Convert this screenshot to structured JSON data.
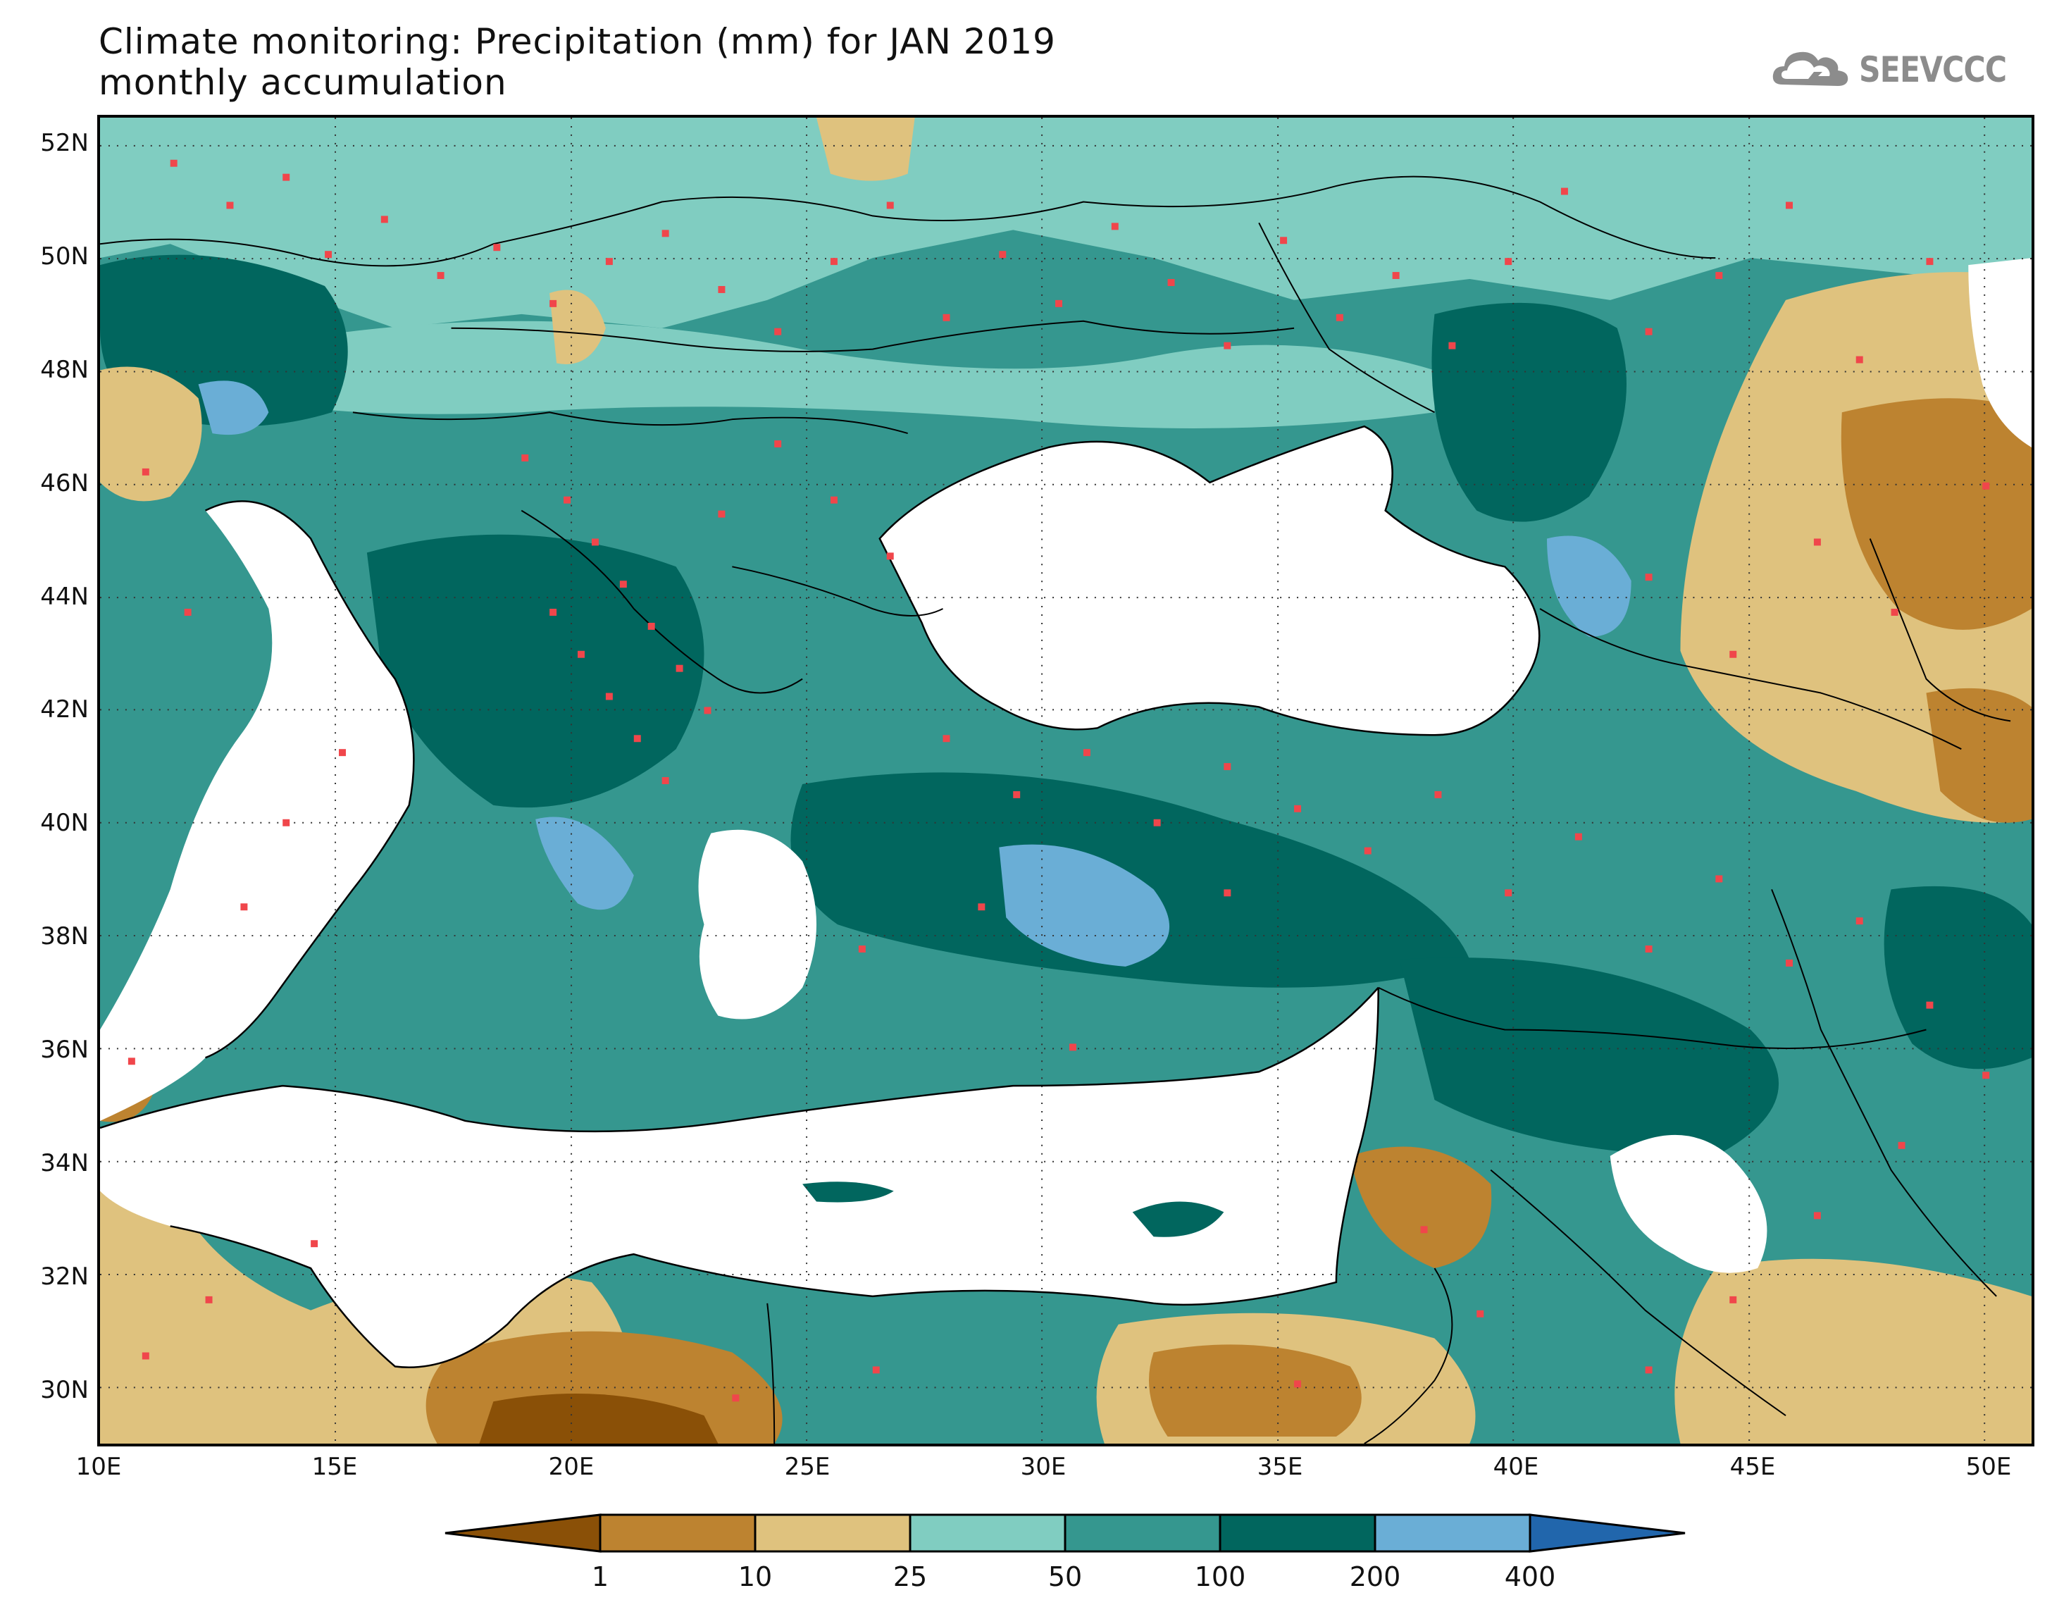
{
  "title": {
    "line1": "Climate monitoring: Precipitation (mm) for JAN 2019",
    "line2": "monthly accumulation"
  },
  "logo": {
    "text": "SEEVCCC",
    "icon": "cloud-icon",
    "color": "#8c8c8c"
  },
  "map": {
    "lon_range": [
      10,
      51
    ],
    "lat_range": [
      29,
      52.5
    ],
    "lat_labels": [
      "52N",
      "50N",
      "48N",
      "46N",
      "44N",
      "42N",
      "40N",
      "38N",
      "36N",
      "34N",
      "32N",
      "30N"
    ],
    "lat_values": [
      52,
      50,
      48,
      46,
      44,
      42,
      40,
      38,
      36,
      34,
      32,
      30
    ],
    "lon_labels": [
      "10E",
      "15E",
      "20E",
      "25E",
      "30E",
      "35E",
      "40E",
      "45E",
      "50E"
    ],
    "lon_values": [
      10,
      15,
      20,
      25,
      30,
      35,
      40,
      45,
      50
    ],
    "grid": "dotted",
    "sea_color": "#ffffff",
    "station_marker_color": "#f0464b"
  },
  "colorbar": {
    "thresholds": [
      "1",
      "10",
      "25",
      "50",
      "100",
      "200",
      "400"
    ],
    "colors": [
      "#8a5007",
      "#bd8330",
      "#dfc27e",
      "#80cdc1",
      "#35978f",
      "#01665e",
      "#6aaed6",
      "#2166ac"
    ],
    "extend": "both"
  }
}
